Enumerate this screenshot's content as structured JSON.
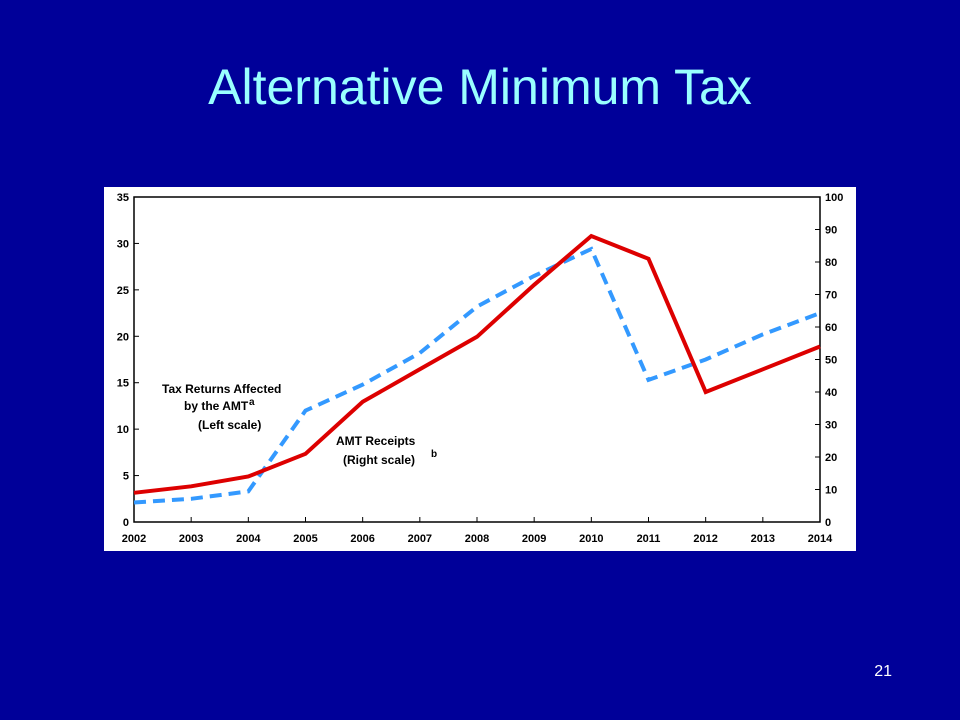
{
  "slide": {
    "title": "Alternative Minimum Tax",
    "number": "21",
    "background_color": "#000099",
    "title_color": "#99ffff"
  },
  "chart_data": {
    "type": "line",
    "x": [
      "2002",
      "2003",
      "2004",
      "2005",
      "2006",
      "2007",
      "2008",
      "2009",
      "2010",
      "2011",
      "2012",
      "2013",
      "2014"
    ],
    "y_left_range": [
      0,
      35
    ],
    "y_left_ticks": [
      0,
      5,
      10,
      15,
      20,
      25,
      30,
      35
    ],
    "y_right_range": [
      0,
      100
    ],
    "y_right_ticks": [
      0,
      10,
      20,
      30,
      40,
      50,
      60,
      70,
      80,
      90,
      100
    ],
    "grid": false,
    "series": [
      {
        "name": "Tax Returns Affected by the AMT",
        "superscript": "a",
        "scale_note": "(Left scale)",
        "axis": "left",
        "style": "dashed",
        "color": "#3399ff",
        "values": [
          2.1,
          2.5,
          3.3,
          12.0,
          14.8,
          18.2,
          23.2,
          26.5,
          29.4,
          15.3,
          17.5,
          20.2,
          22.5
        ]
      },
      {
        "name": "AMT Receipts",
        "superscript": "b",
        "scale_note": "(Right scale)",
        "axis": "right",
        "style": "solid",
        "color": "#dd0000",
        "values": [
          9,
          11,
          14,
          21,
          37,
          47,
          57,
          73,
          88,
          81,
          40,
          47,
          54
        ]
      }
    ]
  }
}
